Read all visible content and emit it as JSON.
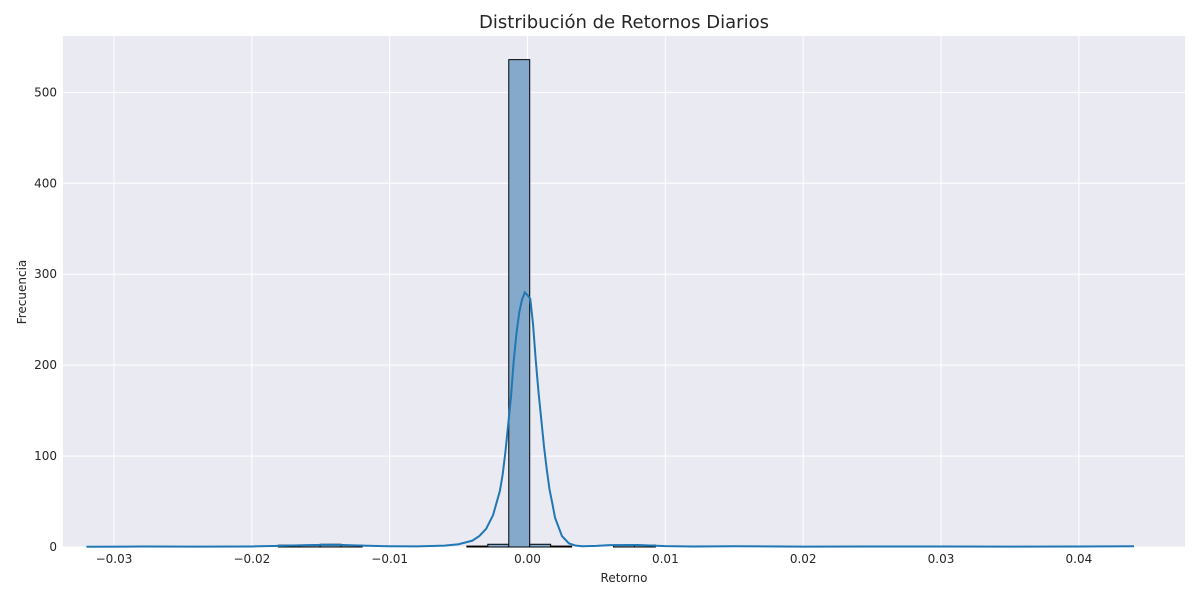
{
  "chart_data": {
    "type": "histogram",
    "title": "Distribución de Retornos Diarios",
    "xlabel": "Retorno",
    "ylabel": "Frecuencia",
    "xlim": [
      -0.0337,
      0.0477
    ],
    "ylim": [
      0,
      562
    ],
    "x_ticks": [
      -0.03,
      -0.02,
      -0.01,
      0.0,
      0.01,
      0.02,
      0.03,
      0.04
    ],
    "x_tick_labels": [
      "−0.03",
      "−0.02",
      "−0.01",
      "0.00",
      "0.01",
      "0.02",
      "0.03",
      "0.04"
    ],
    "y_ticks": [
      0,
      100,
      200,
      300,
      400,
      500
    ],
    "y_tick_labels": [
      "0",
      "100",
      "200",
      "300",
      "400",
      "500"
    ],
    "grid": true,
    "legend": "none",
    "bin_width": 0.00152,
    "bins": [
      {
        "x0": -0.01808,
        "x1": -0.01656,
        "count": 2
      },
      {
        "x0": -0.01656,
        "x1": -0.01504,
        "count": 2
      },
      {
        "x0": -0.01504,
        "x1": -0.01352,
        "count": 3
      },
      {
        "x0": -0.01352,
        "x1": -0.012,
        "count": 2
      },
      {
        "x0": -0.0044,
        "x1": -0.00288,
        "count": 1
      },
      {
        "x0": -0.00288,
        "x1": -0.00136,
        "count": 3
      },
      {
        "x0": -0.00136,
        "x1": 0.00016,
        "count": 536
      },
      {
        "x0": 0.00016,
        "x1": 0.00168,
        "count": 3
      },
      {
        "x0": 0.00168,
        "x1": 0.0032,
        "count": 1
      },
      {
        "x0": 0.00624,
        "x1": 0.00776,
        "count": 2
      },
      {
        "x0": 0.00776,
        "x1": 0.00928,
        "count": 2
      }
    ],
    "kde": {
      "name": "",
      "x": [
        -0.032,
        -0.028,
        -0.024,
        -0.02,
        -0.018,
        -0.016,
        -0.014,
        -0.012,
        -0.01,
        -0.008,
        -0.006,
        -0.005,
        -0.004,
        -0.0035,
        -0.003,
        -0.0025,
        -0.002,
        -0.0018,
        -0.0016,
        -0.0014,
        -0.0012,
        -0.001,
        -0.0008,
        -0.0006,
        -0.0004,
        -0.0002,
        0.0,
        0.0002,
        0.0004,
        0.0006,
        0.0008,
        0.001,
        0.0012,
        0.0014,
        0.0016,
        0.0018,
        0.002,
        0.0025,
        0.003,
        0.0035,
        0.004,
        0.005,
        0.006,
        0.008,
        0.01,
        0.012,
        0.015,
        0.02,
        0.025,
        0.03,
        0.035,
        0.04,
        0.044
      ],
      "y": [
        0.3,
        0.5,
        0.4,
        0.6,
        1.2,
        2.0,
        2.5,
        1.5,
        0.8,
        0.7,
        1.5,
        3,
        7,
        12,
        20,
        35,
        62,
        80,
        105,
        135,
        165,
        205,
        235,
        258,
        272,
        280,
        277,
        273,
        245,
        205,
        170,
        140,
        110,
        85,
        63,
        48,
        32,
        12,
        4,
        1.5,
        0.8,
        1.2,
        2.0,
        2.2,
        1.0,
        0.5,
        0.8,
        0.4,
        0.6,
        0.5,
        0.4,
        0.5,
        0.8
      ],
      "color": "#1f77b4"
    },
    "colors": {
      "background": "#eaeaf2",
      "grid": "#ffffff",
      "bar_fill": "#85a9cb",
      "bar_edge": "#000000",
      "line": "#1f77b4"
    }
  }
}
